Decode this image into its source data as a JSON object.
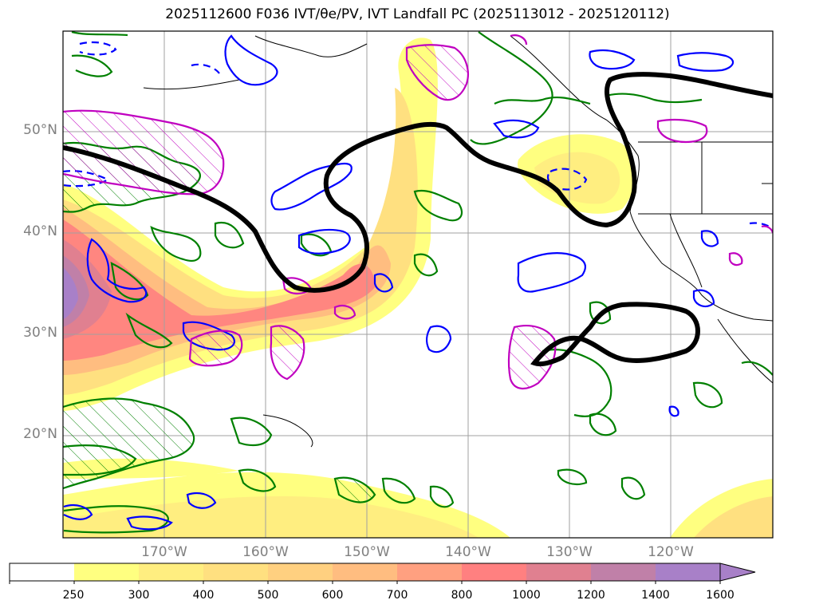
{
  "title": "2025112600 F036 IVT/θe/PV, IVT Landfall PC (2025113012 - 2025120112)",
  "latitude_labels": [
    "50°N",
    "40°N",
    "30°N",
    "20°N"
  ],
  "longitude_labels": [
    "170°W",
    "160°W",
    "150°W",
    "140°W",
    "130°W",
    "120°W"
  ],
  "colorbar": {
    "labels": [
      "250",
      "300",
      "400",
      "500",
      "600",
      "700",
      "800",
      "1000",
      "1200",
      "1400",
      "1600"
    ],
    "colors": [
      "#ffffff",
      "#ffff80",
      "#ffee80",
      "#ffe080",
      "#ffd080",
      "#ffbd80",
      "#ffa080",
      "#ff8080",
      "#e08090",
      "#c080a8",
      "#a880c8"
    ],
    "extend": "max"
  },
  "chart_data": {
    "type": "map",
    "title": "2025112600 F036 IVT/θe/PV, IVT Landfall PC (2025113012 - 2025120112)",
    "lat_range": [
      10,
      60
    ],
    "lon_range": [
      -180,
      -110
    ],
    "shading_variable": "IVT",
    "shading_levels": [
      250,
      300,
      400,
      500,
      600,
      700,
      800,
      1000,
      1200,
      1400,
      1600
    ]
  },
  "colors": {
    "pv_contour": "#008000",
    "theta_contour": "#0000ff",
    "landfall_contour": "#c000c0",
    "thick_contour": "#000000",
    "gridline": "#a0a0a0",
    "label_gray": "#808080"
  }
}
